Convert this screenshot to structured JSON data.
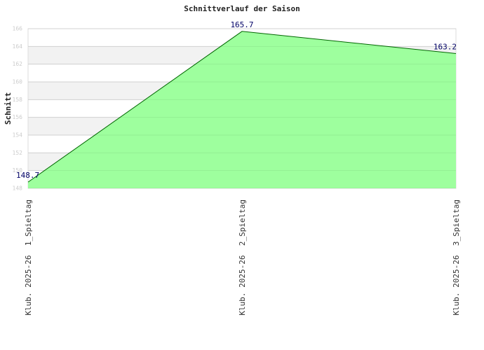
{
  "chart_data": {
    "type": "area",
    "title": "Schnittverlauf der Saison",
    "y_label": "Schnitt",
    "categories": [
      "Klub. 2025-26  1_Spieltag",
      "Klub. 2025-26  2_Spieltag",
      "Klub. 2025-26  3_Spieltag"
    ],
    "values": [
      148.7,
      165.7,
      163.2
    ],
    "color": "#99ff99",
    "line_color": "#006600",
    "ylim": [
      148,
      166
    ],
    "yticks": [
      148,
      150,
      152,
      154,
      156,
      158,
      160,
      162,
      164,
      166
    ],
    "grid": true
  }
}
